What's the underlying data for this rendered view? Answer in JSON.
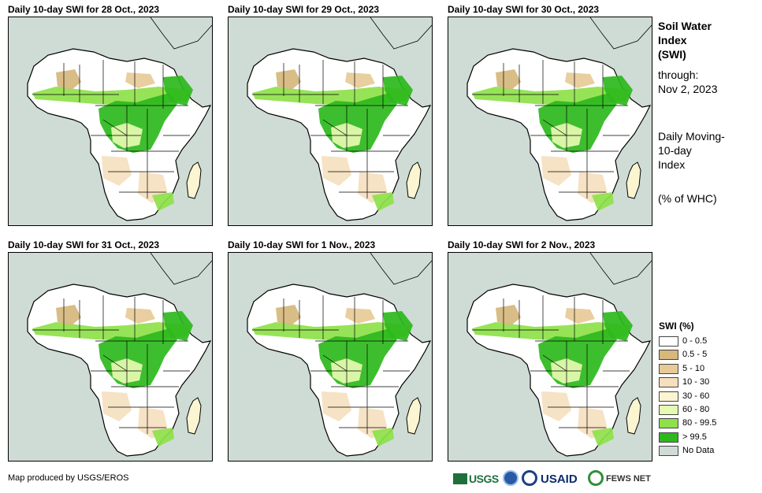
{
  "panels": [
    {
      "title": "Daily 10-day  SWI for 28 Oct., 2023"
    },
    {
      "title": "Daily 10-day  SWI for 29 Oct., 2023"
    },
    {
      "title": "Daily 10-day  SWI for 30 Oct., 2023"
    },
    {
      "title": "Daily 10-day  SWI for 31 Oct., 2023"
    },
    {
      "title": "Daily 10-day  SWI for 1 Nov., 2023"
    },
    {
      "title": "Daily 10-day  SWI for 2 Nov., 2023"
    }
  ],
  "sidebar": {
    "title_lines": [
      "Soil Water",
      "Index",
      "(SWI)"
    ],
    "through_label": "through:",
    "through_date": "Nov 2, 2023",
    "desc_lines": [
      "Daily Moving-",
      "10-day",
      "Index"
    ],
    "unit": "(% of WHC)"
  },
  "legend": {
    "title": "SWI (%)",
    "items": [
      {
        "label": "0 - 0.5",
        "color": "#ffffff"
      },
      {
        "label": "0.5 - 5",
        "color": "#d6b77c"
      },
      {
        "label": "5 - 10",
        "color": "#e7ca98"
      },
      {
        "label": "10 - 30",
        "color": "#f5dfbf"
      },
      {
        "label": "30 - 60",
        "color": "#fbf5d2"
      },
      {
        "label": "60 - 80",
        "color": "#e6fbb1"
      },
      {
        "label": "80 - 99.5",
        "color": "#8ee14a"
      },
      {
        "label": "> 99.5",
        "color": "#2db81c"
      },
      {
        "label": "No Data",
        "color": "#cfdcd5"
      }
    ]
  },
  "credit": "Map produced by USGS/EROS",
  "logos": {
    "usgs": "USGS",
    "usaid": "USAID",
    "fews": "FEWS NET"
  }
}
